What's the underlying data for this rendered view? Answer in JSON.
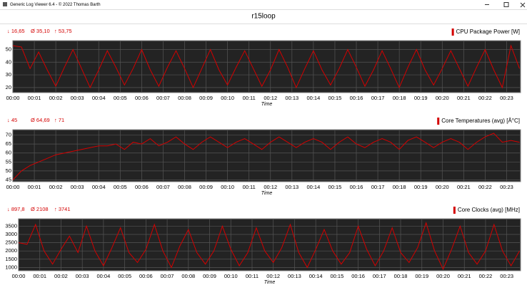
{
  "window_title": "Generic Log Viewer 6.4 - © 2022 Thomas Barth",
  "header": "r15loop",
  "chart_data": [
    {
      "type": "line",
      "stats": [
        "↓ 16,65",
        "Ø 35,10",
        "↑ 53,75"
      ],
      "xlabel": "Time",
      "x": [
        0,
        0.4,
        0.8,
        1.2,
        1.6,
        2,
        2.4,
        2.8,
        3.2,
        3.6,
        4,
        4.4,
        4.8,
        5.2,
        5.6,
        6,
        6.4,
        6.8,
        7.2,
        7.6,
        8,
        8.4,
        8.8,
        9.2,
        9.6,
        10,
        10.4,
        10.8,
        11.2,
        11.6,
        12,
        12.4,
        12.8,
        13.2,
        13.6,
        14,
        14.4,
        14.8,
        15.2,
        15.6,
        16,
        16.4,
        16.8,
        17.2,
        17.6,
        18,
        18.4,
        18.8,
        19.2,
        19.6,
        20,
        20.4,
        20.8,
        21.2,
        21.6,
        22,
        22.4,
        22.8,
        23.2,
        23.6
      ],
      "series": [
        {
          "name": "CPU Package Power [W]",
          "color": "#d40000",
          "values": [
            53,
            52,
            35,
            48,
            34,
            21,
            36,
            50,
            35,
            20,
            34,
            49,
            36,
            22,
            35,
            50,
            34,
            21,
            36,
            49,
            35,
            20,
            35,
            50,
            34,
            22,
            36,
            49,
            35,
            21,
            34,
            50,
            36,
            20,
            35,
            49,
            34,
            22,
            35,
            50,
            36,
            21,
            34,
            49,
            35,
            20,
            36,
            50,
            34,
            22,
            35,
            49,
            35,
            21,
            36,
            50,
            34,
            20,
            53,
            35
          ]
        }
      ],
      "xlim": [
        0,
        23.65
      ],
      "ylim": [
        16,
        57
      ],
      "yticks": [
        20,
        30,
        40,
        50
      ],
      "grid": true,
      "xticks": [
        {
          "value": 0,
          "label": "00:00"
        },
        {
          "value": 1,
          "label": "00:01"
        },
        {
          "value": 2,
          "label": "00:02"
        },
        {
          "value": 3,
          "label": "00:03"
        },
        {
          "value": 4,
          "label": "00:04"
        },
        {
          "value": 5,
          "label": "00:05"
        },
        {
          "value": 6,
          "label": "00:06"
        },
        {
          "value": 7,
          "label": "00:07"
        },
        {
          "value": 8,
          "label": "00:08"
        },
        {
          "value": 9,
          "label": "00:09"
        },
        {
          "value": 10,
          "label": "00:10"
        },
        {
          "value": 11,
          "label": "00:11"
        },
        {
          "value": 12,
          "label": "00:12"
        },
        {
          "value": 13,
          "label": "00:13"
        },
        {
          "value": 14,
          "label": "00:14"
        },
        {
          "value": 15,
          "label": "00:15"
        },
        {
          "value": 16,
          "label": "00:16"
        },
        {
          "value": 17,
          "label": "00:17"
        },
        {
          "value": 18,
          "label": "00:18"
        },
        {
          "value": 19,
          "label": "00:19"
        },
        {
          "value": 20,
          "label": "00:20"
        },
        {
          "value": 21,
          "label": "00:21"
        },
        {
          "value": 22,
          "label": "00:22"
        },
        {
          "value": 23,
          "label": "00:23"
        }
      ]
    },
    {
      "type": "line",
      "stats": [
        "↓ 45",
        "Ø 64,69",
        "↑ 71"
      ],
      "xlabel": "Time",
      "x": [
        0,
        0.4,
        0.8,
        1.2,
        1.6,
        2,
        2.4,
        2.8,
        3.2,
        3.6,
        4,
        4.4,
        4.8,
        5.2,
        5.6,
        6,
        6.4,
        6.8,
        7.2,
        7.6,
        8,
        8.4,
        8.8,
        9.2,
        9.6,
        10,
        10.4,
        10.8,
        11.2,
        11.6,
        12,
        12.4,
        12.8,
        13.2,
        13.6,
        14,
        14.4,
        14.8,
        15.2,
        15.6,
        16,
        16.4,
        16.8,
        17.2,
        17.6,
        18,
        18.4,
        18.8,
        19.2,
        19.6,
        20,
        20.4,
        20.8,
        21.2,
        21.6,
        22,
        22.4,
        22.8,
        23.2,
        23.6
      ],
      "series": [
        {
          "name": "Core Temperatures (avg) [Â°C]",
          "color": "#d40000",
          "values": [
            45,
            50,
            53,
            55,
            57,
            59,
            60,
            61,
            62,
            63,
            64,
            64,
            65,
            62,
            66,
            65,
            68,
            64,
            66,
            69,
            65,
            62,
            66,
            69,
            66,
            63,
            66,
            68,
            65,
            62,
            66,
            69,
            66,
            63,
            66,
            68,
            66,
            62,
            66,
            69,
            65,
            63,
            66,
            68,
            66,
            62,
            67,
            69,
            66,
            63,
            66,
            68,
            66,
            62,
            66,
            69,
            71,
            66,
            67,
            66
          ]
        }
      ],
      "xlim": [
        0,
        23.65
      ],
      "ylim": [
        44,
        73
      ],
      "yticks": [
        45,
        50,
        55,
        60,
        65,
        70
      ],
      "grid": true,
      "xticks": [
        {
          "value": 0,
          "label": "00:00"
        },
        {
          "value": 1,
          "label": "00:01"
        },
        {
          "value": 2,
          "label": "00:02"
        },
        {
          "value": 3,
          "label": "00:03"
        },
        {
          "value": 4,
          "label": "00:04"
        },
        {
          "value": 5,
          "label": "00:05"
        },
        {
          "value": 6,
          "label": "00:06"
        },
        {
          "value": 7,
          "label": "00:07"
        },
        {
          "value": 8,
          "label": "00:08"
        },
        {
          "value": 9,
          "label": "00:09"
        },
        {
          "value": 10,
          "label": "00:10"
        },
        {
          "value": 11,
          "label": "00:11"
        },
        {
          "value": 12,
          "label": "00:12"
        },
        {
          "value": 13,
          "label": "00:13"
        },
        {
          "value": 14,
          "label": "00:14"
        },
        {
          "value": 15,
          "label": "00:15"
        },
        {
          "value": 16,
          "label": "00:16"
        },
        {
          "value": 17,
          "label": "00:17"
        },
        {
          "value": 18,
          "label": "00:18"
        },
        {
          "value": 19,
          "label": "00:19"
        },
        {
          "value": 20,
          "label": "00:20"
        },
        {
          "value": 21,
          "label": "00:21"
        },
        {
          "value": 22,
          "label": "00:22"
        },
        {
          "value": 23,
          "label": "00:23"
        }
      ]
    },
    {
      "type": "line",
      "stats": [
        "↓ 897,8",
        "Ø 2108",
        "↑ 3741"
      ],
      "xlabel": "Time",
      "x": [
        0,
        0.4,
        0.8,
        1.2,
        1.6,
        2,
        2.4,
        2.8,
        3.2,
        3.6,
        4,
        4.4,
        4.8,
        5.2,
        5.6,
        6,
        6.4,
        6.8,
        7.2,
        7.6,
        8,
        8.4,
        8.8,
        9.2,
        9.6,
        10,
        10.4,
        10.8,
        11.2,
        11.6,
        12,
        12.4,
        12.8,
        13.2,
        13.6,
        14,
        14.4,
        14.8,
        15.2,
        15.6,
        16,
        16.4,
        16.8,
        17.2,
        17.6,
        18,
        18.4,
        18.8,
        19.2,
        19.6,
        20,
        20.4,
        20.8,
        21.2,
        21.6,
        22,
        22.4,
        22.8,
        23.2,
        23.6
      ],
      "series": [
        {
          "name": "Core Clocks (avg) [MHz]",
          "color": "#d40000",
          "values": [
            2500,
            2400,
            3600,
            2000,
            1200,
            2100,
            2900,
            1900,
            3500,
            2000,
            1100,
            2200,
            3400,
            1900,
            1300,
            2100,
            3600,
            2000,
            1000,
            2300,
            3300,
            1900,
            1200,
            2000,
            3500,
            2100,
            1100,
            1900,
            3400,
            2000,
            1300,
            2200,
            3600,
            1900,
            1000,
            2100,
            3300,
            2000,
            1200,
            1900,
            3500,
            2100,
            1100,
            2000,
            3400,
            1900,
            1300,
            2200,
            3700,
            2000,
            900,
            2100,
            3500,
            1900,
            1200,
            2000,
            3600,
            2000,
            1100,
            2000
          ]
        }
      ],
      "xlim": [
        0,
        23.65
      ],
      "ylim": [
        800,
        3950
      ],
      "yticks": [
        1000,
        1500,
        2000,
        2500,
        3000,
        3500
      ],
      "grid": true,
      "xticks": [
        {
          "value": 0,
          "label": "00:00"
        },
        {
          "value": 1,
          "label": "00:01"
        },
        {
          "value": 2,
          "label": "00:02"
        },
        {
          "value": 3,
          "label": "00:03"
        },
        {
          "value": 4,
          "label": "00:04"
        },
        {
          "value": 5,
          "label": "00:05"
        },
        {
          "value": 6,
          "label": "00:06"
        },
        {
          "value": 7,
          "label": "00:07"
        },
        {
          "value": 8,
          "label": "00:08"
        },
        {
          "value": 9,
          "label": "00:09"
        },
        {
          "value": 10,
          "label": "00:10"
        },
        {
          "value": 11,
          "label": "00:11"
        },
        {
          "value": 12,
          "label": "00:12"
        },
        {
          "value": 13,
          "label": "00:13"
        },
        {
          "value": 14,
          "label": "00:14"
        },
        {
          "value": 15,
          "label": "00:15"
        },
        {
          "value": 16,
          "label": "00:16"
        },
        {
          "value": 17,
          "label": "00:17"
        },
        {
          "value": 18,
          "label": "00:18"
        },
        {
          "value": 19,
          "label": "00:19"
        },
        {
          "value": 20,
          "label": "00:20"
        },
        {
          "value": 21,
          "label": "00:21"
        },
        {
          "value": 22,
          "label": "00:22"
        },
        {
          "value": 23,
          "label": "00:23"
        }
      ]
    }
  ]
}
